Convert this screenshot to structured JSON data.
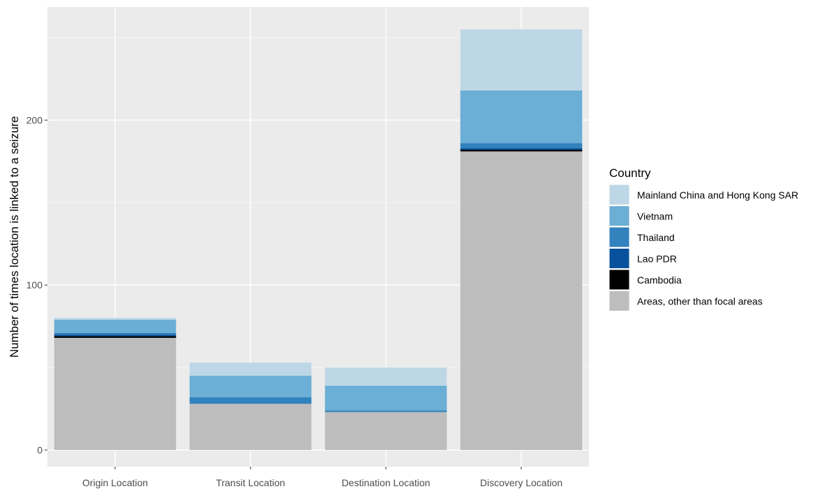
{
  "chart_data": {
    "type": "bar",
    "stacked": true,
    "title": "",
    "xlabel": "",
    "ylabel": "Number of times location is linked to a seizure",
    "ylim": [
      -5,
      265
    ],
    "yticks": [
      0,
      100,
      200
    ],
    "grid": true,
    "legend_position": "right",
    "legend_title": "Country",
    "categories": [
      "Origin Location",
      "Transit Location",
      "Destination Location",
      "Discovery Location"
    ],
    "series": [
      {
        "name": "Areas, other than focal areas",
        "color": "#bdbdbd",
        "values": [
          68,
          28,
          23,
          181
        ]
      },
      {
        "name": "Cambodia",
        "color": "#000000",
        "values": [
          1,
          0,
          0,
          1
        ]
      },
      {
        "name": "Lao PDR",
        "color": "#08519c",
        "values": [
          1,
          0,
          0,
          1
        ]
      },
      {
        "name": "Thailand",
        "color": "#3182bd",
        "values": [
          1,
          4,
          1,
          3
        ]
      },
      {
        "name": "Vietnam",
        "color": "#6baed6",
        "values": [
          8,
          13,
          15,
          32
        ]
      },
      {
        "name": "Mainland China and Hong Kong SAR",
        "color": "#bdd7e7",
        "values": [
          1,
          8,
          11,
          37
        ]
      }
    ],
    "legend_order": [
      "Mainland China and Hong Kong SAR",
      "Vietnam",
      "Thailand",
      "Lao PDR",
      "Cambodia",
      "Areas, other than focal areas"
    ]
  }
}
